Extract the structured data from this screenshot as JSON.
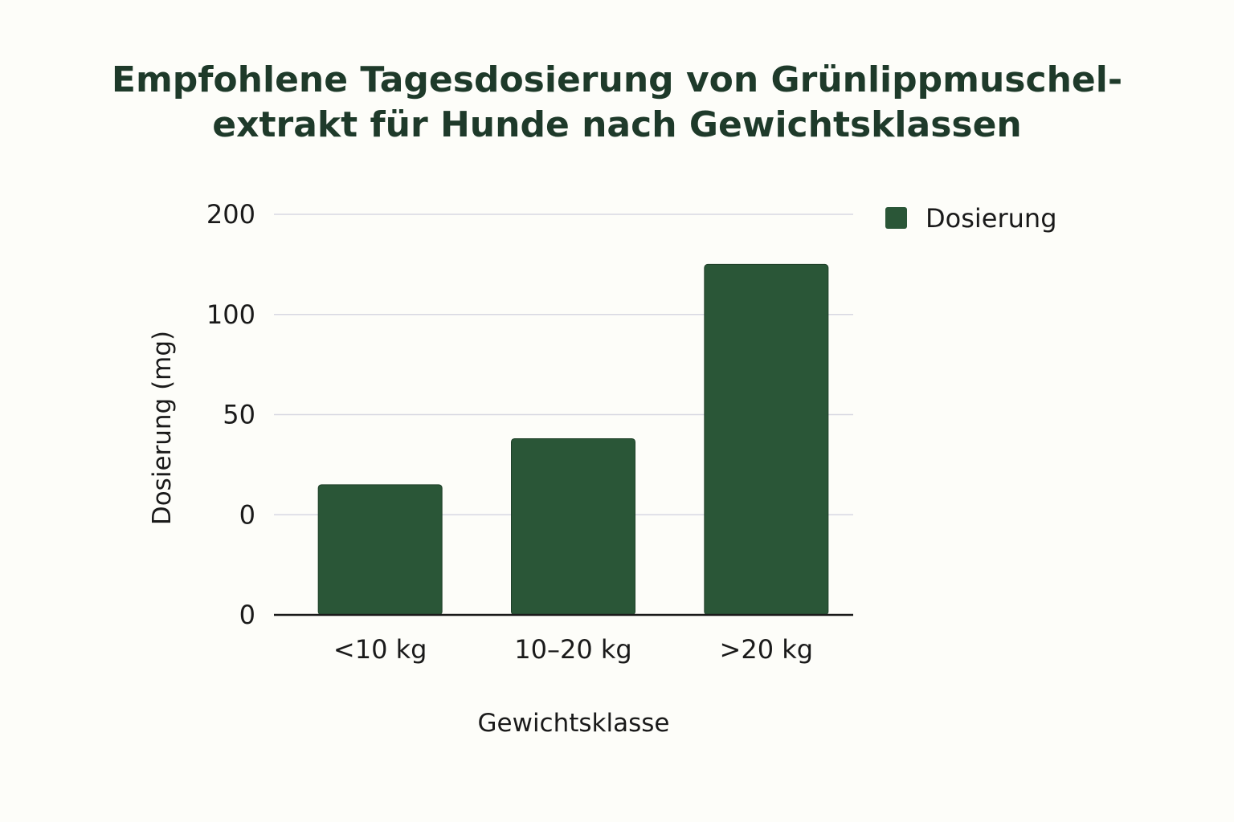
{
  "chart_data": {
    "type": "bar",
    "title_lines": [
      "Empfohlene Tagesdosierung von Grünlippmuschel-",
      "extrakt für Hunde nach Gewichtsklassen"
    ],
    "xlabel": "Gewichtsklasse",
    "ylabel": "Dosierung (mg)",
    "categories": [
      "<10 kg",
      "10–20 kg",
      ">20 kg"
    ],
    "series": [
      {
        "name": "Dosierung",
        "values": [
          65,
          88,
          175
        ],
        "color": "#2a5637"
      }
    ],
    "y_tick_labels": [
      "200",
      "100",
      "50",
      "0",
      "0"
    ],
    "ylim": [
      0,
      200
    ],
    "grid": true,
    "legend_position": "top-right"
  },
  "colors": {
    "bar": "#2a5637",
    "grid": "#d8d8e2",
    "axis": "#1a1a1a",
    "title": "#1e3a2a",
    "background": "#fdfdf9"
  }
}
